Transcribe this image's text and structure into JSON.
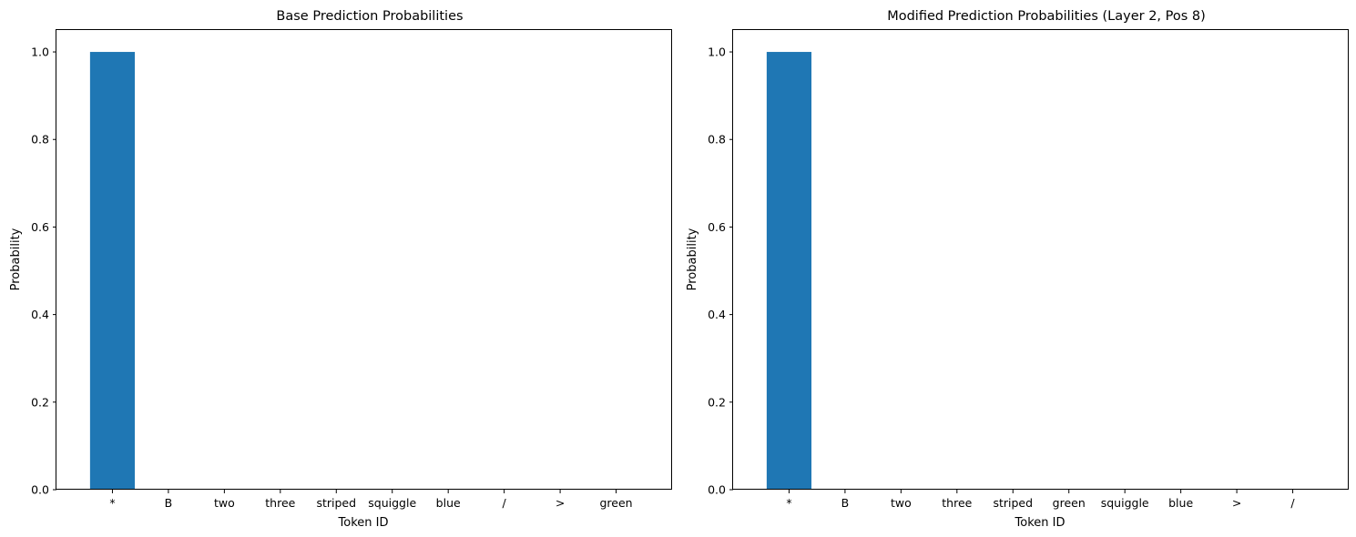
{
  "chart_data": [
    {
      "type": "bar",
      "title": "Base Prediction Probabilities",
      "xlabel": "Token ID",
      "ylabel": "Probability",
      "categories": [
        "*",
        "B",
        "two",
        "three",
        "striped",
        "squiggle",
        "blue",
        "/",
        ">",
        "green"
      ],
      "values": [
        1.0,
        0,
        0,
        0,
        0,
        0,
        0,
        0,
        0,
        0
      ],
      "ylim": [
        0,
        1.05
      ],
      "yticks": [
        "0.0",
        "0.2",
        "0.4",
        "0.6",
        "0.8",
        "1.0"
      ],
      "color": "#1f77b4",
      "grid": false
    },
    {
      "type": "bar",
      "title": "Modified Prediction Probabilities (Layer 2, Pos 8)",
      "xlabel": "Token ID",
      "ylabel": "Probability",
      "categories": [
        "*",
        "B",
        "two",
        "three",
        "striped",
        "green",
        "squiggle",
        "blue",
        ">",
        "/"
      ],
      "values": [
        1.0,
        0,
        0,
        0,
        0,
        0,
        0,
        0,
        0,
        0
      ],
      "ylim": [
        0,
        1.05
      ],
      "yticks": [
        "0.0",
        "0.2",
        "0.4",
        "0.6",
        "0.8",
        "1.0"
      ],
      "color": "#1f77b4",
      "grid": false
    }
  ]
}
